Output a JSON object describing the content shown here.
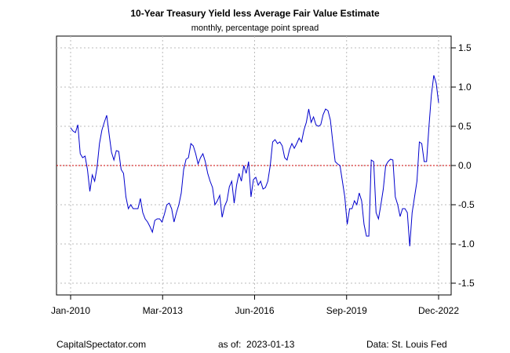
{
  "chart_data": {
    "type": "line",
    "title": "10-Year Treasury Yield less Average Fair Value Estimate",
    "subtitle": "monthly, percentage point spread",
    "xlabel": "",
    "ylabel": "",
    "x_ticks": [
      "Jan-2010",
      "Mar-2013",
      "Jun-2016",
      "Sep-2019",
      "Dec-2022"
    ],
    "y_ticks": [
      1.5,
      1.0,
      0.5,
      0.0,
      -0.5,
      -1.0,
      -1.5
    ],
    "y_tick_labels": [
      "1.5",
      "1.0",
      "0.5",
      "0.0",
      "-0.5",
      "-1.0",
      "-1.5"
    ],
    "ylim": [
      -1.65,
      1.65
    ],
    "grid": true,
    "reference_line": 0.0,
    "series": [
      {
        "name": "spread",
        "start": "Jan-2010",
        "frequency": "monthly",
        "values": [
          0.48,
          0.44,
          0.42,
          0.52,
          0.15,
          0.1,
          0.12,
          -0.05,
          -0.33,
          -0.12,
          -0.2,
          -0.02,
          0.28,
          0.45,
          0.55,
          0.64,
          0.4,
          0.17,
          0.07,
          0.19,
          0.18,
          -0.05,
          -0.1,
          -0.4,
          -0.55,
          -0.5,
          -0.55,
          -0.55,
          -0.55,
          -0.42,
          -0.6,
          -0.68,
          -0.72,
          -0.78,
          -0.85,
          -0.7,
          -0.68,
          -0.68,
          -0.72,
          -0.62,
          -0.5,
          -0.48,
          -0.55,
          -0.72,
          -0.6,
          -0.5,
          -0.35,
          -0.05,
          0.08,
          0.1,
          0.28,
          0.25,
          0.15,
          0.02,
          0.1,
          0.15,
          0.05,
          -0.1,
          -0.2,
          -0.28,
          -0.5,
          -0.45,
          -0.38,
          -0.66,
          -0.52,
          -0.45,
          -0.27,
          -0.2,
          -0.48,
          -0.25,
          -0.1,
          -0.2,
          0.0,
          -0.1,
          0.05,
          -0.4,
          -0.18,
          -0.15,
          -0.25,
          -0.2,
          -0.3,
          -0.28,
          -0.2,
          0.0,
          0.3,
          0.33,
          0.28,
          0.3,
          0.25,
          0.1,
          0.07,
          0.2,
          0.28,
          0.22,
          0.28,
          0.35,
          0.3,
          0.45,
          0.55,
          0.72,
          0.55,
          0.62,
          0.52,
          0.5,
          0.52,
          0.65,
          0.72,
          0.7,
          0.58,
          0.3,
          0.05,
          0.02,
          0.0,
          -0.2,
          -0.4,
          -0.75,
          -0.55,
          -0.55,
          -0.45,
          -0.5,
          -0.35,
          -0.45,
          -0.75,
          -0.9,
          -0.9,
          0.07,
          0.05,
          -0.6,
          -0.68,
          -0.5,
          -0.3,
          0.0,
          0.05,
          0.08,
          0.07,
          -0.4,
          -0.5,
          -0.65,
          -0.55,
          -0.55,
          -0.6,
          -1.03,
          -0.6,
          -0.4,
          -0.2,
          0.3,
          0.28,
          0.05,
          0.05,
          0.5,
          0.9,
          1.15,
          1.05,
          0.8
        ]
      }
    ]
  },
  "footer": {
    "source_site": "CapitalSpectator.com",
    "as_of_label": "as of:",
    "as_of_date": "2023-01-13",
    "data_source": "Data: St. Louis Fed"
  },
  "colors": {
    "line": "#0000cd",
    "zero_line": "#cc0000",
    "grid": "#bbbbbb",
    "axis": "#000000"
  }
}
